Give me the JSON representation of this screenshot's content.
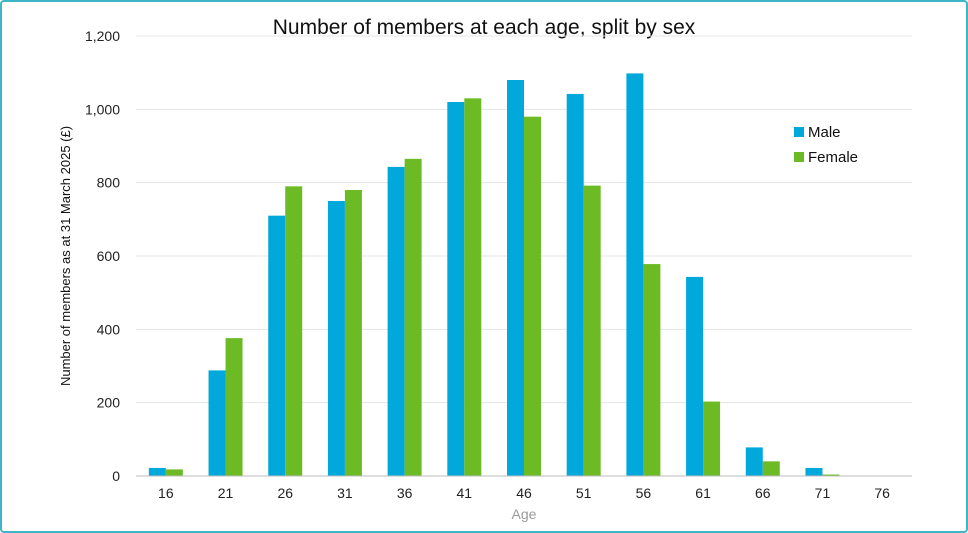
{
  "colors": {
    "male": "#00a8dc",
    "female": "#6cbb24",
    "grid": "#e4e4e4",
    "axis": "#bdbdbd",
    "frame": "#3fb6c7"
  },
  "chart_data": {
    "type": "bar",
    "title": "Number of members at each age, split by sex",
    "xlabel": "Age",
    "ylabel": "Number of members as at 31 March 2025 (£)",
    "categories": [
      "16",
      "21",
      "26",
      "31",
      "36",
      "41",
      "46",
      "51",
      "56",
      "61",
      "66",
      "71",
      "76"
    ],
    "series": [
      {
        "name": "Male",
        "values": [
          22,
          288,
          710,
          750,
          843,
          1020,
          1080,
          1042,
          1098,
          543,
          78,
          22,
          0
        ]
      },
      {
        "name": "Female",
        "values": [
          18,
          376,
          790,
          780,
          865,
          1030,
          980,
          792,
          578,
          203,
          40,
          4,
          0
        ]
      }
    ],
    "ylim": [
      0,
      1200
    ],
    "yticks": [
      "0",
      "200",
      "400",
      "600",
      "800",
      "1,000",
      "1,200"
    ],
    "grid": true,
    "legend": "right"
  }
}
